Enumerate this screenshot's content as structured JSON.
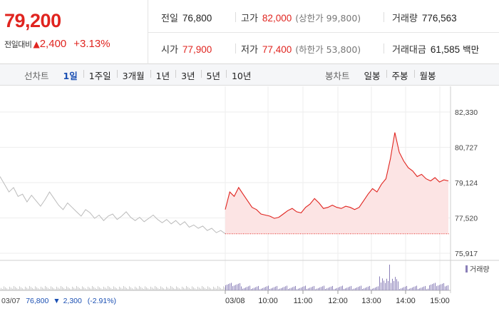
{
  "quote": {
    "price": "79,200",
    "change_label": "전일대비",
    "change_arrow": "▲",
    "change_amount": "2,400",
    "change_percent": "+3.13%",
    "up_color": "#e0241f"
  },
  "stats": {
    "prev_close": {
      "label": "전일",
      "value": "76,800"
    },
    "high": {
      "label": "고가",
      "value": "82,000",
      "sub": "(상한가 99,800)"
    },
    "volume": {
      "label": "거래량",
      "value": "776,563"
    },
    "open": {
      "label": "시가",
      "value": "77,900"
    },
    "low": {
      "label": "저가",
      "value": "77,400",
      "sub": "(하한가 53,800)"
    },
    "turnover": {
      "label": "거래대금",
      "value": "61,585",
      "unit": "백만"
    }
  },
  "line_tabs": {
    "title": "선차트",
    "items": [
      "1일",
      "1주일",
      "3개월",
      "1년",
      "3년",
      "5년",
      "10년"
    ],
    "active": 0
  },
  "candle_tabs": {
    "title": "봉차트",
    "items": [
      "일봉",
      "주봉",
      "월봉"
    ]
  },
  "prev_day": {
    "date": "03/07",
    "close": "76,800",
    "arrow": "▼",
    "change": "2,300",
    "percent": "(-2.91%)",
    "down_color": "#1a4fb3"
  },
  "chart_data": {
    "type": "line",
    "y_ticks": [
      "82,330",
      "80,727",
      "79,124",
      "77,520",
      "75,917"
    ],
    "ylim": [
      75917,
      82330
    ],
    "x_ticks": [
      "03/08",
      "10:00",
      "11:00",
      "12:00",
      "13:00",
      "14:00",
      "15:00"
    ],
    "volume_legend": "거래량",
    "baseline": 76800,
    "series": [
      {
        "name": "03/07",
        "color": "#bbbbbb",
        "values": [
          79400,
          79050,
          78700,
          78900,
          78500,
          78600,
          78250,
          78550,
          78300,
          78050,
          78350,
          78700,
          78400,
          78100,
          77900,
          78200,
          78000,
          77800,
          77600,
          77900,
          77750,
          77500,
          77650,
          77400,
          77600,
          77700,
          77450,
          77600,
          77800,
          77550,
          77400,
          77550,
          77350,
          77500,
          77650,
          77450,
          77300,
          77450,
          77250,
          77400,
          77200,
          77350,
          77100,
          77200,
          77050,
          77150,
          76950,
          77050,
          76850,
          76950,
          76800
        ]
      },
      {
        "name": "03/08",
        "color": "#e0241f",
        "values": [
          77900,
          78700,
          78500,
          78900,
          78600,
          78300,
          78000,
          77900,
          77700,
          77650,
          77600,
          77500,
          77550,
          77700,
          77850,
          77950,
          77800,
          77750,
          78000,
          78150,
          78400,
          78200,
          77950,
          78000,
          78100,
          78000,
          77950,
          78050,
          78000,
          77900,
          78000,
          78300,
          78600,
          78850,
          78700,
          79050,
          79300,
          80200,
          81400,
          80500,
          80100,
          79800,
          79650,
          79400,
          79500,
          79300,
          79200,
          79350,
          79150,
          79250,
          79200
        ]
      }
    ]
  }
}
